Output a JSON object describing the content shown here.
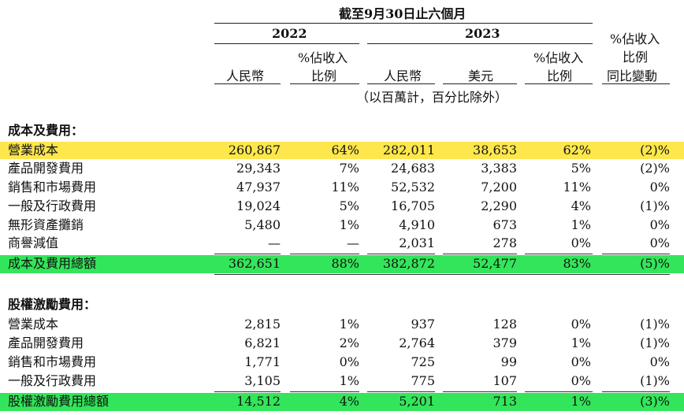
{
  "header": {
    "period": "截至9月30日止六個月",
    "year_2022": "2022",
    "year_2023": "2023",
    "col_rmb_2022": "人民幣",
    "col_pct_2022_l1": "%佔收入",
    "col_pct_2022_l2": "比例",
    "col_rmb_2023": "人民幣",
    "col_usd_2023": "美元",
    "col_pct_2023_l1": "%佔收入",
    "col_pct_2023_l2": "比例",
    "col_yoy_l1": "%佔收入",
    "col_yoy_l2": "比例",
    "col_yoy_l3": "同比變動",
    "units_note": "（以百萬計，百分比除外）"
  },
  "section1": {
    "title": "成本及費用：",
    "rows": [
      {
        "label": "營業成本",
        "v2022": "260,867",
        "p2022": "64%",
        "v2023": "282,011",
        "usd": "38,653",
        "p2023": "62%",
        "yoy": "(2)%"
      },
      {
        "label": "產品開發費用",
        "v2022": "29,343",
        "p2022": "7%",
        "v2023": "24,683",
        "usd": "3,383",
        "p2023": "5%",
        "yoy": "(2)%"
      },
      {
        "label": "銷售和市場費用",
        "v2022": "47,937",
        "p2022": "11%",
        "v2023": "52,532",
        "usd": "7,200",
        "p2023": "11%",
        "yoy": "0%"
      },
      {
        "label": "一般及行政費用",
        "v2022": "19,024",
        "p2022": "5%",
        "v2023": "16,705",
        "usd": "2,290",
        "p2023": "4%",
        "yoy": "(1)%"
      },
      {
        "label": "無形資產攤銷",
        "v2022": "5,480",
        "p2022": "1%",
        "v2023": "4,910",
        "usd": "673",
        "p2023": "1%",
        "yoy": "0%"
      },
      {
        "label": "商譽減值",
        "v2022": "—",
        "p2022": "—",
        "v2023": "2,031",
        "usd": "278",
        "p2023": "0%",
        "yoy": "0%"
      }
    ],
    "total": {
      "label": "成本及費用總額",
      "v2022": "362,651",
      "p2022": "88%",
      "v2023": "382,872",
      "usd": "52,477",
      "p2023": "83%",
      "yoy": "(5)%"
    }
  },
  "section2": {
    "title": "股權激勵費用：",
    "rows": [
      {
        "label": "營業成本",
        "v2022": "2,815",
        "p2022": "1%",
        "v2023": "937",
        "usd": "128",
        "p2023": "0%",
        "yoy": "(1)%"
      },
      {
        "label": "產品開發費用",
        "v2022": "6,821",
        "p2022": "2%",
        "v2023": "2,764",
        "usd": "379",
        "p2023": "1%",
        "yoy": "(1)%"
      },
      {
        "label": "銷售和市場費用",
        "v2022": "1,771",
        "p2022": "0%",
        "v2023": "725",
        "usd": "99",
        "p2023": "0%",
        "yoy": "0%"
      },
      {
        "label": "一般及行政費用",
        "v2022": "3,105",
        "p2022": "1%",
        "v2023": "775",
        "usd": "107",
        "p2023": "0%",
        "yoy": "(1)%"
      }
    ],
    "total": {
      "label": "股權激勵費用總額",
      "v2022": "14,512",
      "p2022": "4%",
      "v2023": "5,201",
      "usd": "713",
      "p2023": "1%",
      "yoy": "(3)%"
    }
  },
  "colors": {
    "highlight_yellow": "#fde74c",
    "highlight_green": "#33e55a"
  }
}
